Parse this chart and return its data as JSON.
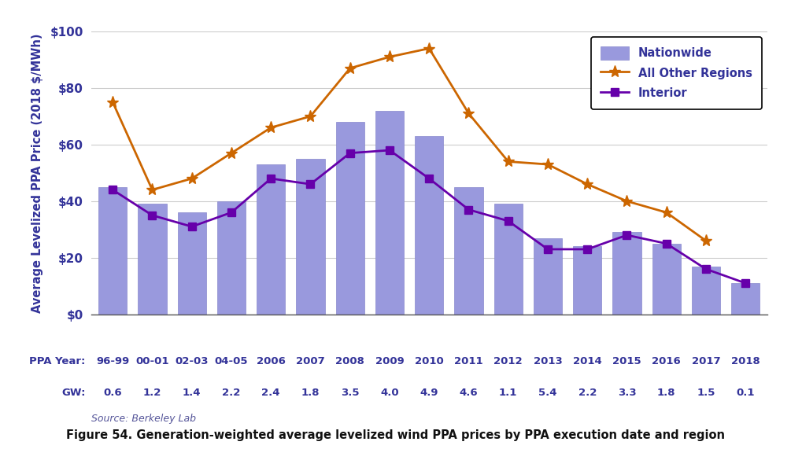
{
  "categories": [
    "96-99",
    "00-01",
    "02-03",
    "04-05",
    "2006",
    "2007",
    "2008",
    "2009",
    "2010",
    "2011",
    "2012",
    "2013",
    "2014",
    "2015",
    "2016",
    "2017",
    "2018"
  ],
  "gw_labels": [
    "0.6",
    "1.2",
    "1.4",
    "2.2",
    "2.4",
    "1.8",
    "3.5",
    "4.0",
    "4.9",
    "4.6",
    "1.1",
    "5.4",
    "2.2",
    "3.3",
    "1.8",
    "1.5",
    "0.1"
  ],
  "nationwide_bars": [
    45,
    39,
    36,
    40,
    53,
    55,
    68,
    72,
    63,
    45,
    39,
    27,
    24,
    29,
    25,
    17,
    11
  ],
  "all_other_regions": [
    75,
    44,
    48,
    57,
    66,
    70,
    87,
    91,
    94,
    71,
    54,
    53,
    46,
    40,
    36,
    26,
    null
  ],
  "interior": [
    44,
    35,
    31,
    36,
    48,
    46,
    57,
    58,
    48,
    37,
    33,
    23,
    23,
    28,
    25,
    16,
    11
  ],
  "bar_color": "#9999DD",
  "bar_edge_color": "#8888CC",
  "all_other_color": "#CC6600",
  "interior_color": "#6600AA",
  "ylabel": "Average Levelized PPA Price (2018 $/MWh)",
  "ylim": [
    0,
    100
  ],
  "yticks": [
    0,
    20,
    40,
    60,
    80,
    100
  ],
  "ytick_labels": [
    "$0",
    "$20",
    "$40",
    "$60",
    "$80",
    "$100"
  ],
  "legend_labels": [
    "Nationwide",
    "All Other Regions",
    "Interior"
  ],
  "source_text": "Source: Berkeley Lab",
  "figure_caption": "Figure 54. Generation-weighted average levelized wind PPA prices by PPA execution date and region",
  "background_color": "#FFFFFF",
  "label_color": "#333399",
  "ppa_row_label": "PPA Year:",
  "gw_row_label": "GW:"
}
